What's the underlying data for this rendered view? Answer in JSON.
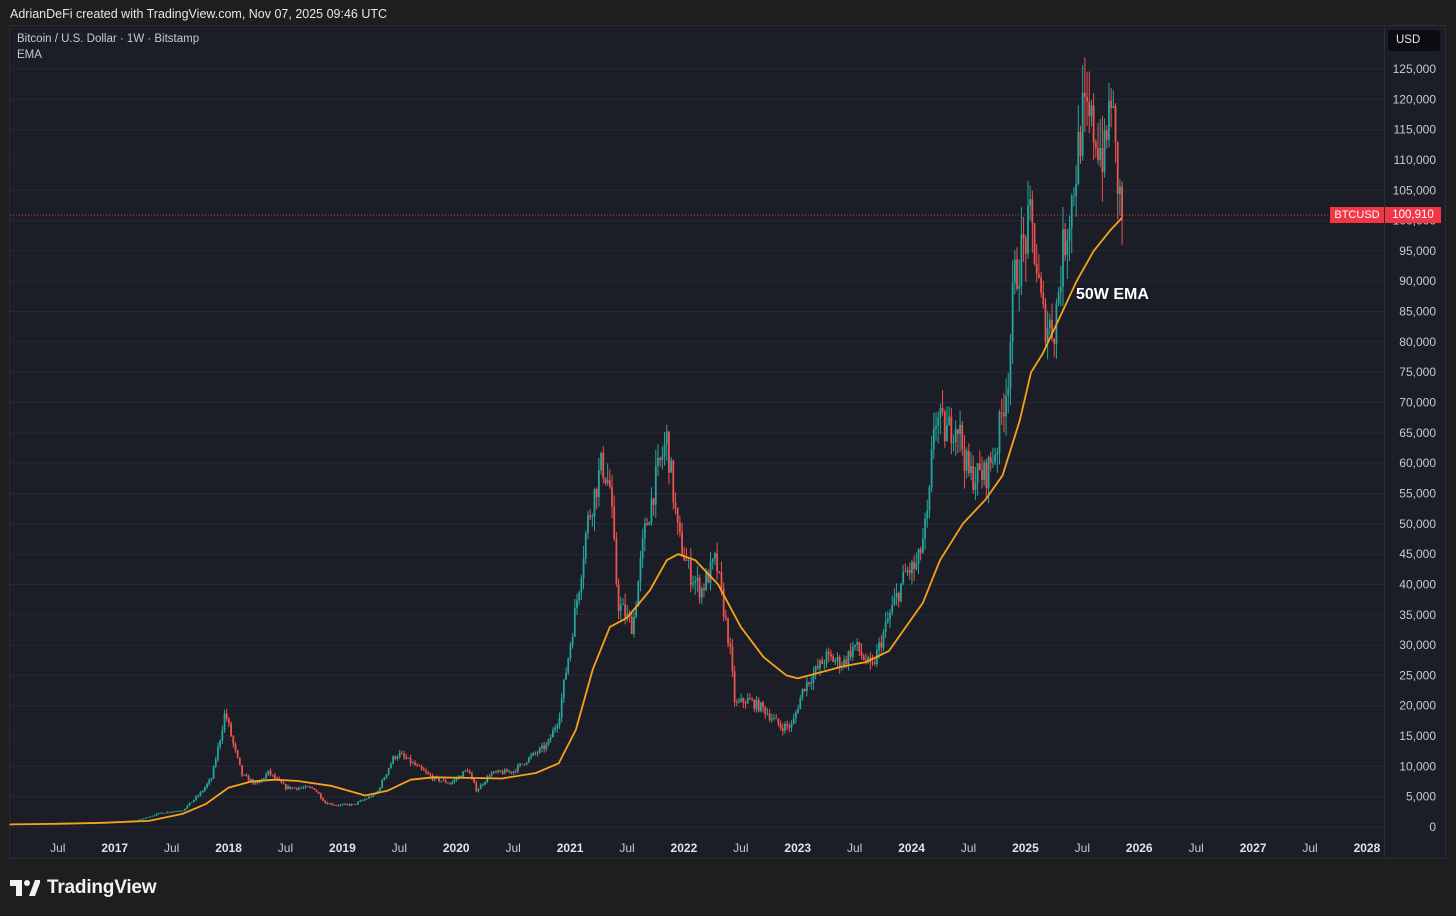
{
  "header": {
    "credit": "AdrianDeFi created with TradingView.com, Nov 07, 2025 09:46 UTC"
  },
  "legend": {
    "symbol_line": "Bitcoin / U.S. Dollar · 1W · Bitstamp",
    "indicator": "EMA"
  },
  "currency_button": "USD",
  "last_price": {
    "symbol": "BTCUSD",
    "value_label": "100,910"
  },
  "annotation": "50W EMA",
  "brand": {
    "name": "TradingView",
    "logo_icon": "tradingview-logo-icon"
  },
  "colors": {
    "background": "#1b1d27",
    "up": "#26a69a",
    "down": "#ef5350",
    "ema": "#f7a21b",
    "price_tag": "#f23645"
  },
  "chart_data": {
    "type": "candlestick",
    "title": "",
    "interval": "1W",
    "x_tick_labels": [
      "Jul",
      "2017",
      "Jul",
      "2018",
      "Jul",
      "2019",
      "Jul",
      "2020",
      "Jul",
      "2021",
      "Jul",
      "2022",
      "Jul",
      "2023",
      "Jul",
      "2024",
      "Jul",
      "2025",
      "Jul",
      "2026",
      "Jul",
      "2027",
      "Jul",
      "2028"
    ],
    "x_ticks": [
      2016.5,
      2017,
      2017.5,
      2018,
      2018.5,
      2019,
      2019.5,
      2020,
      2020.5,
      2021,
      2021.5,
      2022,
      2022.5,
      2023,
      2023.5,
      2024,
      2024.5,
      2025,
      2025.5,
      2026,
      2026.5,
      2027,
      2027.5,
      2028
    ],
    "xlim": [
      2016.08,
      2028.15
    ],
    "ylim": [
      0,
      127500
    ],
    "y_ticks": [
      0,
      5000,
      10000,
      15000,
      20000,
      25000,
      30000,
      35000,
      40000,
      45000,
      50000,
      55000,
      60000,
      65000,
      70000,
      75000,
      80000,
      85000,
      90000,
      95000,
      100000,
      105000,
      110000,
      115000,
      120000,
      125000
    ],
    "y_tick_labels": [
      "0",
      "5,000",
      "10,000",
      "15,000",
      "20,000",
      "25,000",
      "30,000",
      "35,000",
      "40,000",
      "45,000",
      "50,000",
      "55,000",
      "60,000",
      "65,000",
      "70,000",
      "75,000",
      "80,000",
      "85,000",
      "90,000",
      "95,000",
      "100,000",
      "105,000",
      "110,000",
      "115,000",
      "120,000",
      "125,000"
    ],
    "last_price": 100910,
    "price_anchors": [
      [
        2016.08,
        430
      ],
      [
        2016.5,
        650
      ],
      [
        2016.9,
        750
      ],
      [
        2017.2,
        1100
      ],
      [
        2017.4,
        2300
      ],
      [
        2017.6,
        2800
      ],
      [
        2017.75,
        5500
      ],
      [
        2017.85,
        8000
      ],
      [
        2017.93,
        15000
      ],
      [
        2017.97,
        19000
      ],
      [
        2018.05,
        13000
      ],
      [
        2018.12,
        8500
      ],
      [
        2018.25,
        7000
      ],
      [
        2018.35,
        9000
      ],
      [
        2018.5,
        6500
      ],
      [
        2018.75,
        6400
      ],
      [
        2018.85,
        4000
      ],
      [
        2018.95,
        3600
      ],
      [
        2019.1,
        3700
      ],
      [
        2019.3,
        5500
      ],
      [
        2019.45,
        11500
      ],
      [
        2019.5,
        12000
      ],
      [
        2019.65,
        10000
      ],
      [
        2019.8,
        8000
      ],
      [
        2019.95,
        7200
      ],
      [
        2020.1,
        9500
      ],
      [
        2020.18,
        6000
      ],
      [
        2020.3,
        8800
      ],
      [
        2020.5,
        9200
      ],
      [
        2020.65,
        11500
      ],
      [
        2020.8,
        13500
      ],
      [
        2020.9,
        18000
      ],
      [
        2021.0,
        30000
      ],
      [
        2021.08,
        40000
      ],
      [
        2021.15,
        50000
      ],
      [
        2021.28,
        60000
      ],
      [
        2021.35,
        56000
      ],
      [
        2021.42,
        37000
      ],
      [
        2021.55,
        33000
      ],
      [
        2021.65,
        48000
      ],
      [
        2021.75,
        57000
      ],
      [
        2021.85,
        64000
      ],
      [
        2021.95,
        48000
      ],
      [
        2022.05,
        42000
      ],
      [
        2022.15,
        39000
      ],
      [
        2022.28,
        44000
      ],
      [
        2022.4,
        30000
      ],
      [
        2022.45,
        20000
      ],
      [
        2022.55,
        21000
      ],
      [
        2022.7,
        19500
      ],
      [
        2022.85,
        16500
      ],
      [
        2022.95,
        16700
      ],
      [
        2023.05,
        23000
      ],
      [
        2023.25,
        28000
      ],
      [
        2023.4,
        27000
      ],
      [
        2023.5,
        30000
      ],
      [
        2023.65,
        26000
      ],
      [
        2023.8,
        34500
      ],
      [
        2023.95,
        42000
      ],
      [
        2024.05,
        43000
      ],
      [
        2024.15,
        52000
      ],
      [
        2024.2,
        68000
      ],
      [
        2024.3,
        65000
      ],
      [
        2024.4,
        67000
      ],
      [
        2024.5,
        58000
      ],
      [
        2024.65,
        58000
      ],
      [
        2024.75,
        63000
      ],
      [
        2024.85,
        75000
      ],
      [
        2024.9,
        90000
      ],
      [
        2024.97,
        95000
      ],
      [
        2025.05,
        100000
      ],
      [
        2025.15,
        84000
      ],
      [
        2025.25,
        82000
      ],
      [
        2025.33,
        95000
      ],
      [
        2025.42,
        105000
      ],
      [
        2025.5,
        117000
      ],
      [
        2025.6,
        115000
      ],
      [
        2025.7,
        110000
      ],
      [
        2025.75,
        122000
      ],
      [
        2025.8,
        108000
      ],
      [
        2025.85,
        100910
      ]
    ],
    "series": [
      {
        "name": "EMA",
        "style": "line",
        "color": "#f7a21b",
        "points": [
          [
            2016.08,
            430
          ],
          [
            2016.5,
            530
          ],
          [
            2016.9,
            700
          ],
          [
            2017.3,
            1000
          ],
          [
            2017.6,
            2200
          ],
          [
            2017.8,
            3800
          ],
          [
            2018.0,
            6500
          ],
          [
            2018.2,
            7500
          ],
          [
            2018.4,
            7800
          ],
          [
            2018.6,
            7600
          ],
          [
            2018.9,
            6800
          ],
          [
            2019.2,
            5200
          ],
          [
            2019.4,
            6000
          ],
          [
            2019.6,
            7800
          ],
          [
            2019.8,
            8200
          ],
          [
            2020.1,
            8100
          ],
          [
            2020.4,
            8000
          ],
          [
            2020.7,
            8900
          ],
          [
            2020.9,
            10500
          ],
          [
            2021.05,
            16000
          ],
          [
            2021.2,
            26000
          ],
          [
            2021.35,
            33000
          ],
          [
            2021.5,
            34500
          ],
          [
            2021.7,
            39000
          ],
          [
            2021.85,
            44000
          ],
          [
            2021.95,
            45000
          ],
          [
            2022.1,
            44000
          ],
          [
            2022.3,
            40000
          ],
          [
            2022.5,
            33000
          ],
          [
            2022.7,
            28000
          ],
          [
            2022.9,
            25000
          ],
          [
            2023.0,
            24500
          ],
          [
            2023.2,
            25500
          ],
          [
            2023.4,
            26500
          ],
          [
            2023.6,
            27200
          ],
          [
            2023.8,
            29000
          ],
          [
            2023.95,
            33000
          ],
          [
            2024.1,
            37000
          ],
          [
            2024.25,
            44000
          ],
          [
            2024.45,
            50000
          ],
          [
            2024.65,
            54000
          ],
          [
            2024.8,
            58000
          ],
          [
            2024.95,
            67000
          ],
          [
            2025.05,
            75000
          ],
          [
            2025.15,
            78000
          ],
          [
            2025.3,
            84000
          ],
          [
            2025.45,
            90000
          ],
          [
            2025.6,
            95000
          ],
          [
            2025.75,
            98500
          ],
          [
            2025.85,
            100500
          ]
        ]
      }
    ],
    "annotations": [
      {
        "text": "50W EMA",
        "points_to": "EMA"
      }
    ],
    "grid": true,
    "axis_position": "right"
  }
}
